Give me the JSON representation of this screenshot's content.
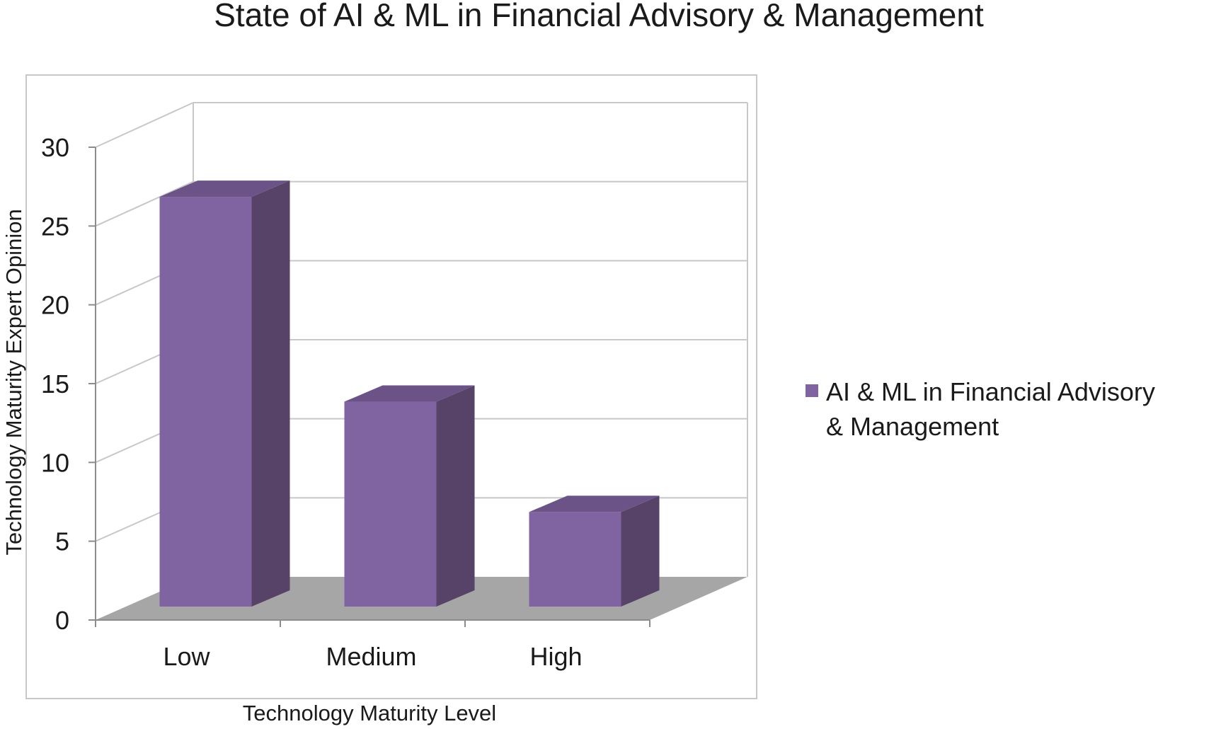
{
  "chart_data": {
    "type": "bar",
    "title": "State of AI & ML in Financial Advisory & Management",
    "xlabel": "Technology Maturity Level",
    "ylabel": "Technology Maturity  Expert Opinion",
    "categories": [
      "Low",
      "Medium",
      "High"
    ],
    "series": [
      {
        "name": "AI & ML in Financial Advisory & Management",
        "name_lines": [
          "AI & ML in Financial Advisory",
          "& Management"
        ],
        "values": [
          26,
          13,
          6
        ],
        "color": "#8064a2",
        "side_color": "#574367",
        "top_color": "#6b5287"
      }
    ],
    "ylim": [
      0,
      30
    ],
    "yticks": [
      0,
      5,
      10,
      15,
      20,
      25,
      30
    ],
    "grid": true,
    "legend_position": "right",
    "style": "3d-column",
    "floor_color": "#a6a6a6",
    "gridline_color": "#c8c8c8",
    "frame_color": "#c8c8c8"
  }
}
